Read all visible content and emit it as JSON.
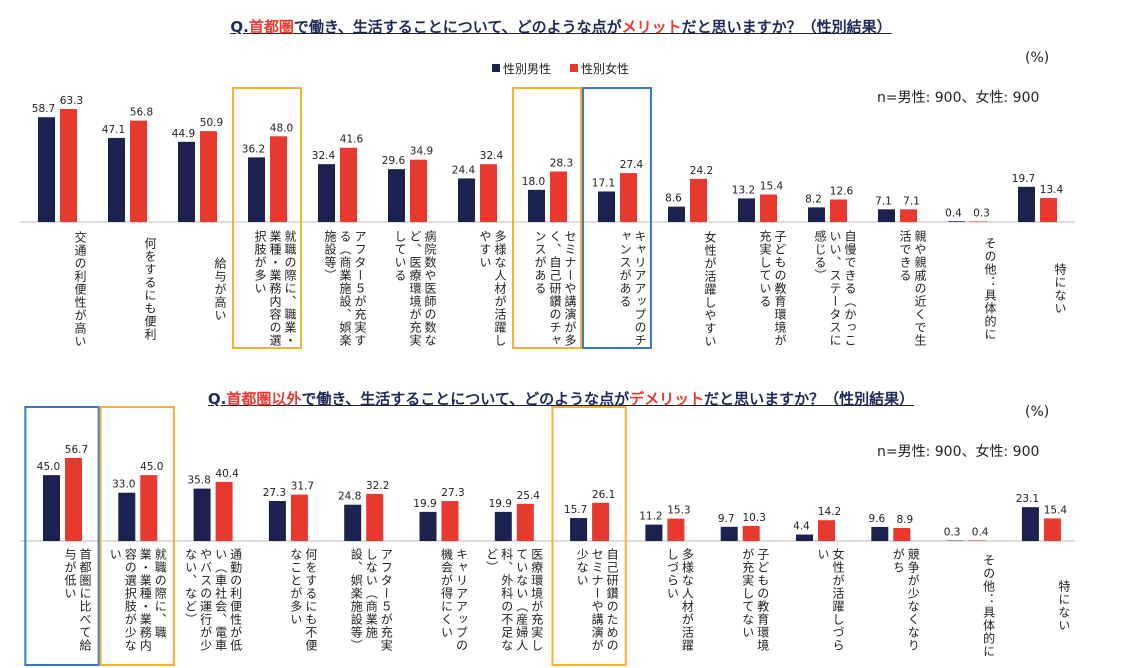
{
  "chart_data": [
    {
      "type": "bar",
      "title": [
        {
          "text": "Q.",
          "color": "#1f2a5a"
        },
        {
          "text": "首都圏",
          "color": "#e8392f"
        },
        {
          "text": "で働き、生活することについて、どのような点が",
          "color": "#1f2a5a"
        },
        {
          "text": "メリット",
          "color": "#e8392f"
        },
        {
          "text": "だと思いますか？（性別結果）",
          "color": "#1f2a5a"
        }
      ],
      "unit": "(%)",
      "note": "n=男性: 900、女性: 900",
      "legend": true,
      "categories": [
        "交通の利便性が高い",
        "何をするにも便利",
        "給与が高い",
        "就職の際に、職業・業種・業務内容の選択肢が多い",
        "アフター５が充実する（商業施設、娯楽施設等）",
        "病院数や医師の数など、医療環境が充実している",
        "多様な人材が活躍しやすい",
        "セミナーや講演が多く、自己研鑽のチャンスがある",
        "キャリアアップのチャンスがある",
        "女性が活躍しやすい",
        "子どもの教育環境が充実している",
        "自慢できる（かっこいい、ステータスに感じる）",
        "親や親戚の近くで生活できる",
        "その他：具体的に",
        "特にない"
      ],
      "series": [
        {
          "name": "性別男性",
          "color": "#1c2250",
          "values": [
            58.7,
            47.1,
            44.9,
            36.2,
            32.4,
            29.6,
            24.4,
            18.0,
            17.1,
            8.6,
            13.2,
            8.2,
            7.1,
            0.4,
            19.7
          ],
          "value_labels": [
            "58.7",
            "47.1",
            "44.9",
            "36.2",
            "32.4",
            "29.6",
            "24.4",
            "18.0",
            "17.1",
            "8.6",
            "13.2",
            "8.2",
            "7.1",
            "0.4",
            "19.7"
          ]
        },
        {
          "name": "性別女性",
          "color": "#e8392f",
          "values": [
            63.3,
            56.8,
            50.9,
            48.0,
            41.6,
            34.9,
            32.4,
            28.3,
            27.4,
            24.2,
            15.4,
            12.6,
            7.1,
            0.3,
            13.4
          ],
          "value_labels": [
            "63.3",
            "56.8",
            "50.9",
            "48.0",
            "41.6",
            "34.9",
            "32.4",
            "28.3",
            "27.4",
            "24.2",
            "15.4",
            "12.6",
            "7.1",
            "0.3",
            "13.4"
          ]
        }
      ],
      "highlights": [
        {
          "index": 3,
          "color": "#f5b133"
        },
        {
          "index": 7,
          "color": "#f5b133"
        },
        {
          "index": 8,
          "color": "#3a78c8"
        }
      ]
    },
    {
      "type": "bar",
      "title": [
        {
          "text": "Q.",
          "color": "#1f2a5a"
        },
        {
          "text": "首都圏以外",
          "color": "#e8392f"
        },
        {
          "text": "で働き、生活することについて、どのような点が",
          "color": "#1f2a5a"
        },
        {
          "text": "デメリット",
          "color": "#e8392f"
        },
        {
          "text": "だと思いますか？（性別結果）",
          "color": "#1f2a5a"
        }
      ],
      "unit": "(%)",
      "note": "n=男性: 900、女性: 900",
      "legend": false,
      "categories": [
        "首都圏に比べて給与が低い",
        "就職の際に、職業・業種・業務内容の選択肢が少ない",
        "通勤の利便性が低い（車社会、電車やバスの運行が少ない、など）",
        "何をするにも不便なことが多い",
        "アフター５が充実しない（商業施設、娯楽施設等）",
        "キャリアアップの機会が得にくい",
        "医療環境が充実していない（産婦人科、外科の不足など）",
        "自己研鑽のためのセミナーや講演が少ない",
        "多様な人材が活躍しづらい",
        "子どもの教育環境が充実してない",
        "女性が活躍しづらい",
        "競争が少なくなりがち",
        "その他：具体的に",
        "特にない"
      ],
      "series": [
        {
          "name": "性別男性",
          "color": "#1c2250",
          "values": [
            45.0,
            33.0,
            35.8,
            27.3,
            24.8,
            19.9,
            19.9,
            15.7,
            11.2,
            9.7,
            4.4,
            9.6,
            0.3,
            23.1
          ],
          "value_labels": [
            "45.0",
            "33.0",
            "35.8",
            "27.3",
            "24.8",
            "19.9",
            "19.9",
            "15.7",
            "11.2",
            "9.7",
            "4.4",
            "9.6",
            "0.3",
            "23.1"
          ]
        },
        {
          "name": "性別女性",
          "color": "#e8392f",
          "values": [
            56.7,
            45.0,
            40.4,
            31.7,
            32.2,
            27.3,
            25.4,
            26.1,
            15.3,
            10.3,
            14.2,
            8.9,
            0.4,
            15.4
          ],
          "value_labels": [
            "56.7",
            "45.0",
            "40.4",
            "31.7",
            "32.2",
            "27.3",
            "25.4",
            "26.1",
            "15.3",
            "10.3",
            "14.2",
            "8.9",
            "0.4",
            "15.4"
          ]
        }
      ],
      "highlights": [
        {
          "index": 0,
          "color": "#3a78c8"
        },
        {
          "index": 1,
          "color": "#f5b133"
        },
        {
          "index": 7,
          "color": "#f5b133"
        }
      ]
    }
  ]
}
